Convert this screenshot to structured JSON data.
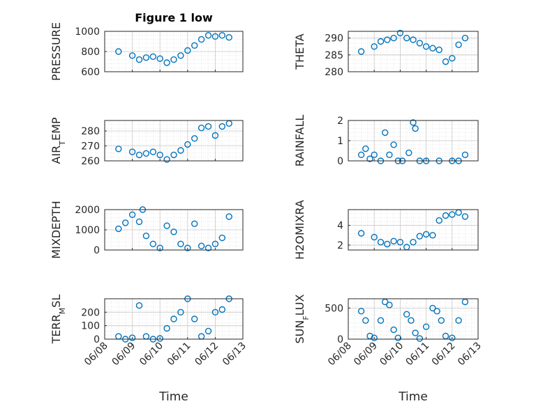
{
  "chart_data": [
    {
      "type": "scatter",
      "title": "Figure 1 low",
      "ylabel": "PRESSURE",
      "ylim": [
        600,
        1000
      ],
      "yticks": [
        "600",
        "800",
        "1000"
      ],
      "xlim": [
        "06/08",
        "06/13"
      ],
      "grid": true,
      "series": [
        {
          "x": [
            "06/08 12:00",
            "06/09 00:00",
            "06/09 06:00",
            "06/09 12:00",
            "06/09 18:00",
            "06/10 00:00",
            "06/10 06:00",
            "06/10 12:00",
            "06/10 18:00",
            "06/11 00:00",
            "06/11 06:00",
            "06/11 12:00",
            "06/11 18:00",
            "06/12 00:00",
            "06/12 06:00",
            "06/12 12:00"
          ],
          "y": [
            800,
            760,
            720,
            740,
            750,
            730,
            690,
            720,
            760,
            810,
            860,
            920,
            960,
            950,
            960,
            940
          ]
        }
      ]
    },
    {
      "type": "scatter",
      "ylabel": "THETA",
      "ylim": [
        280,
        292
      ],
      "yticks": [
        "280",
        "285",
        "290"
      ],
      "xlim": [
        "06/08",
        "06/13"
      ],
      "grid": true,
      "series": [
        {
          "x": [
            "06/08 12:00",
            "06/09 00:00",
            "06/09 06:00",
            "06/09 12:00",
            "06/09 18:00",
            "06/10 00:00",
            "06/10 06:00",
            "06/10 12:00",
            "06/10 18:00",
            "06/11 00:00",
            "06/11 06:00",
            "06/11 12:00",
            "06/11 18:00",
            "06/12 00:00",
            "06/12 06:00",
            "06/12 12:00"
          ],
          "y": [
            286,
            287.5,
            289,
            289.5,
            290,
            291.5,
            290,
            289.5,
            288.5,
            287.5,
            287,
            286.5,
            283,
            284,
            288,
            290
          ]
        }
      ]
    },
    {
      "type": "scatter",
      "ylabel": "AIR_TEMP",
      "ylim": [
        260,
        287
      ],
      "yticks": [
        "260",
        "270",
        "280"
      ],
      "xlim": [
        "06/08",
        "06/13"
      ],
      "grid": true,
      "series": [
        {
          "x": [
            "06/08 12:00",
            "06/09 00:00",
            "06/09 06:00",
            "06/09 12:00",
            "06/09 18:00",
            "06/10 00:00",
            "06/10 06:00",
            "06/10 12:00",
            "06/10 18:00",
            "06/11 00:00",
            "06/11 06:00",
            "06/11 12:00",
            "06/11 18:00",
            "06/12 00:00",
            "06/12 06:00",
            "06/12 12:00"
          ],
          "y": [
            268,
            266,
            264,
            265,
            266,
            264,
            261,
            264,
            267,
            271,
            275,
            282,
            283,
            277,
            283,
            285
          ]
        }
      ]
    },
    {
      "type": "scatter",
      "ylabel": "RAINFALL",
      "ylim": [
        0,
        2
      ],
      "yticks": [
        "0",
        "1",
        "2"
      ],
      "xlim": [
        "06/08",
        "06/13"
      ],
      "grid": true,
      "series": [
        {
          "x": [
            "06/08 12:00",
            "06/08 16:00",
            "06/08 20:00",
            "06/09 00:00",
            "06/09 06:00",
            "06/09 10:00",
            "06/09 14:00",
            "06/09 18:00",
            "06/09 22:00",
            "06/10 02:00",
            "06/10 08:00",
            "06/10 12:00",
            "06/10 14:00",
            "06/10 18:00",
            "06/11 00:00",
            "06/11 12:00",
            "06/12 00:00",
            "06/12 06:00",
            "06/12 12:00"
          ],
          "y": [
            0.3,
            0.6,
            0.1,
            0.3,
            0.0,
            1.4,
            0.3,
            0.8,
            0.0,
            0.0,
            0.4,
            1.9,
            1.6,
            0.0,
            0.0,
            0.0,
            0.0,
            0.0,
            0.3
          ]
        }
      ]
    },
    {
      "type": "scatter",
      "ylabel": "MIXDEPTH",
      "ylim": [
        0,
        2000
      ],
      "yticks": [
        "0",
        "1000",
        "2000"
      ],
      "xlim": [
        "06/08",
        "06/13"
      ],
      "grid": true,
      "series": [
        {
          "x": [
            "06/08 12:00",
            "06/08 18:00",
            "06/09 00:00",
            "06/09 06:00",
            "06/09 09:00",
            "06/09 12:00",
            "06/09 18:00",
            "06/10 00:00",
            "06/10 06:00",
            "06/10 12:00",
            "06/10 18:00",
            "06/11 00:00",
            "06/11 06:00",
            "06/11 12:00",
            "06/11 18:00",
            "06/12 00:00",
            "06/12 06:00",
            "06/12 12:00"
          ],
          "y": [
            1050,
            1350,
            1750,
            1400,
            2000,
            700,
            300,
            100,
            1200,
            900,
            300,
            100,
            1300,
            200,
            100,
            300,
            600,
            1650
          ]
        }
      ]
    },
    {
      "type": "scatter",
      "ylabel": "H2OMIXRA",
      "ylim": [
        1.5,
        5.6
      ],
      "yticks": [
        "2",
        "4"
      ],
      "xlim": [
        "06/08",
        "06/13"
      ],
      "grid": true,
      "series": [
        {
          "x": [
            "06/08 12:00",
            "06/09 00:00",
            "06/09 06:00",
            "06/09 12:00",
            "06/09 18:00",
            "06/10 00:00",
            "06/10 06:00",
            "06/10 12:00",
            "06/10 18:00",
            "06/11 00:00",
            "06/11 06:00",
            "06/11 12:00",
            "06/11 18:00",
            "06/12 00:00",
            "06/12 06:00",
            "06/12 12:00"
          ],
          "y": [
            3.2,
            2.8,
            2.3,
            2.1,
            2.4,
            2.3,
            1.8,
            2.3,
            2.9,
            3.1,
            3.0,
            4.5,
            5.0,
            5.1,
            5.3,
            4.9
          ]
        }
      ]
    },
    {
      "type": "scatter",
      "ylabel": "TERR_MSL",
      "ylim": [
        0,
        300
      ],
      "yticks": [
        "0",
        "100",
        "200"
      ],
      "xlim": [
        "06/08",
        "06/13"
      ],
      "grid": true,
      "series": [
        {
          "x": [
            "06/08 12:00",
            "06/08 18:00",
            "06/09 00:00",
            "06/09 06:00",
            "06/09 12:00",
            "06/09 18:00",
            "06/10 00:00",
            "06/10 06:00",
            "06/10 12:00",
            "06/10 18:00",
            "06/11 00:00",
            "06/11 06:00",
            "06/11 12:00",
            "06/11 18:00",
            "06/12 00:00",
            "06/12 06:00",
            "06/12 12:00"
          ],
          "y": [
            20,
            0,
            10,
            250,
            20,
            0,
            5,
            80,
            150,
            200,
            300,
            150,
            20,
            60,
            200,
            220,
            300
          ]
        }
      ]
    },
    {
      "type": "scatter",
      "ylabel": "SUN_FLUX",
      "ylim": [
        0,
        650
      ],
      "yticks": [
        "0",
        "500"
      ],
      "xlim": [
        "06/08",
        "06/13"
      ],
      "grid": true,
      "series": [
        {
          "x": [
            "06/08 12:00",
            "06/08 16:00",
            "06/08 20:00",
            "06/09 00:00",
            "06/09 06:00",
            "06/09 10:00",
            "06/09 14:00",
            "06/09 18:00",
            "06/09 22:00",
            "06/10 06:00",
            "06/10 10:00",
            "06/10 14:00",
            "06/10 18:00",
            "06/11 00:00",
            "06/11 06:00",
            "06/11 10:00",
            "06/11 14:00",
            "06/11 18:00",
            "06/12 00:00",
            "06/12 06:00",
            "06/12 12:00"
          ],
          "y": [
            450,
            300,
            50,
            20,
            300,
            600,
            550,
            150,
            20,
            400,
            300,
            100,
            10,
            200,
            500,
            450,
            300,
            50,
            20,
            300,
            600
          ]
        }
      ]
    }
  ],
  "xlabel": "Time",
  "xticks": [
    "06/08",
    "06/09",
    "06/10",
    "06/11",
    "06/12",
    "06/13"
  ],
  "marker_color": "#0072BD",
  "axis_color": "#262626",
  "grid_color": "#d9d9d9"
}
